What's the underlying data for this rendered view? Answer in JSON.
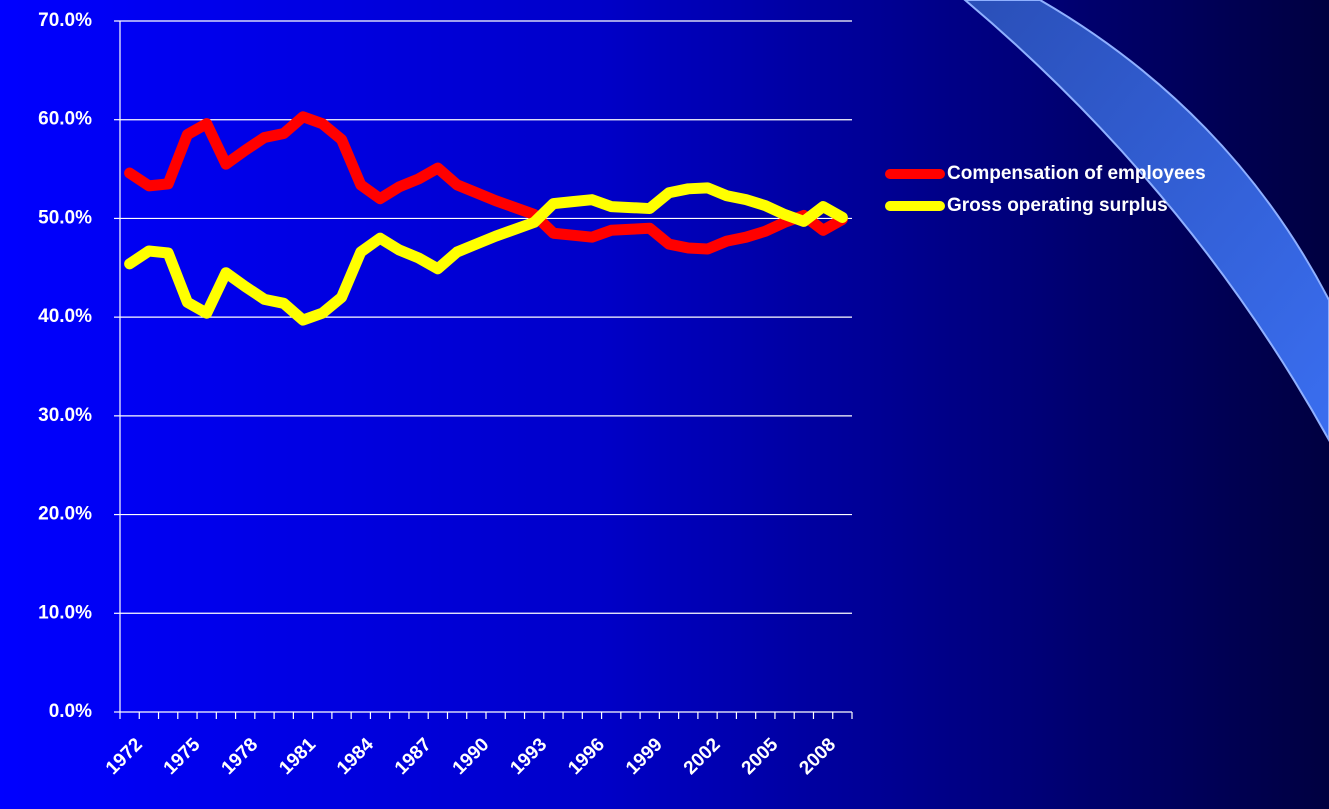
{
  "chart_data": {
    "type": "line",
    "categories": [
      "1972",
      null,
      null,
      "1975",
      null,
      null,
      "1978",
      null,
      null,
      "1981",
      null,
      null,
      "1984",
      null,
      null,
      "1987",
      null,
      null,
      "1990",
      null,
      null,
      "1993",
      null,
      null,
      "1996",
      null,
      null,
      "1999",
      null,
      null,
      "2002",
      null,
      null,
      "2005",
      null,
      null,
      "2008",
      null
    ],
    "series": [
      {
        "name": "Compensation of employees",
        "color": "#ff0000",
        "values": [
          54.6,
          53.3,
          53.5,
          58.5,
          59.6,
          55.5,
          56.9,
          58.2,
          58.6,
          60.3,
          59.6,
          58.0,
          53.4,
          52.0,
          53.2,
          54.0,
          55.1,
          53.4,
          52.6,
          51.8,
          51.1,
          50.4,
          48.5,
          48.3,
          48.1,
          48.8,
          48.9,
          49.0,
          47.4,
          47.0,
          46.9,
          47.7,
          48.1,
          48.7,
          49.6,
          50.3,
          48.8,
          49.9
        ]
      },
      {
        "name": "Gross operating surplus",
        "color": "#ffff00",
        "values": [
          45.4,
          46.7,
          46.5,
          41.5,
          40.4,
          44.5,
          43.1,
          41.8,
          41.4,
          39.7,
          40.4,
          42.0,
          46.6,
          48.0,
          46.8,
          46.0,
          44.9,
          46.6,
          47.4,
          48.2,
          48.9,
          49.6,
          51.5,
          51.7,
          51.9,
          51.2,
          51.1,
          51.0,
          52.6,
          53.0,
          53.1,
          52.3,
          51.9,
          51.3,
          50.4,
          49.7,
          51.2,
          50.1
        ]
      }
    ],
    "ylim": [
      0,
      70
    ],
    "yticks": [
      {
        "value": 0,
        "label": "0.0%"
      },
      {
        "value": 10,
        "label": "10.0%"
      },
      {
        "value": 20,
        "label": "20.0%"
      },
      {
        "value": 30,
        "label": "30.0%"
      },
      {
        "value": 40,
        "label": "40.0%"
      },
      {
        "value": 50,
        "label": "50.0%"
      },
      {
        "value": 60,
        "label": "60.0%"
      },
      {
        "value": 70,
        "label": "70.0%"
      }
    ],
    "grid": true,
    "legend": "right"
  }
}
